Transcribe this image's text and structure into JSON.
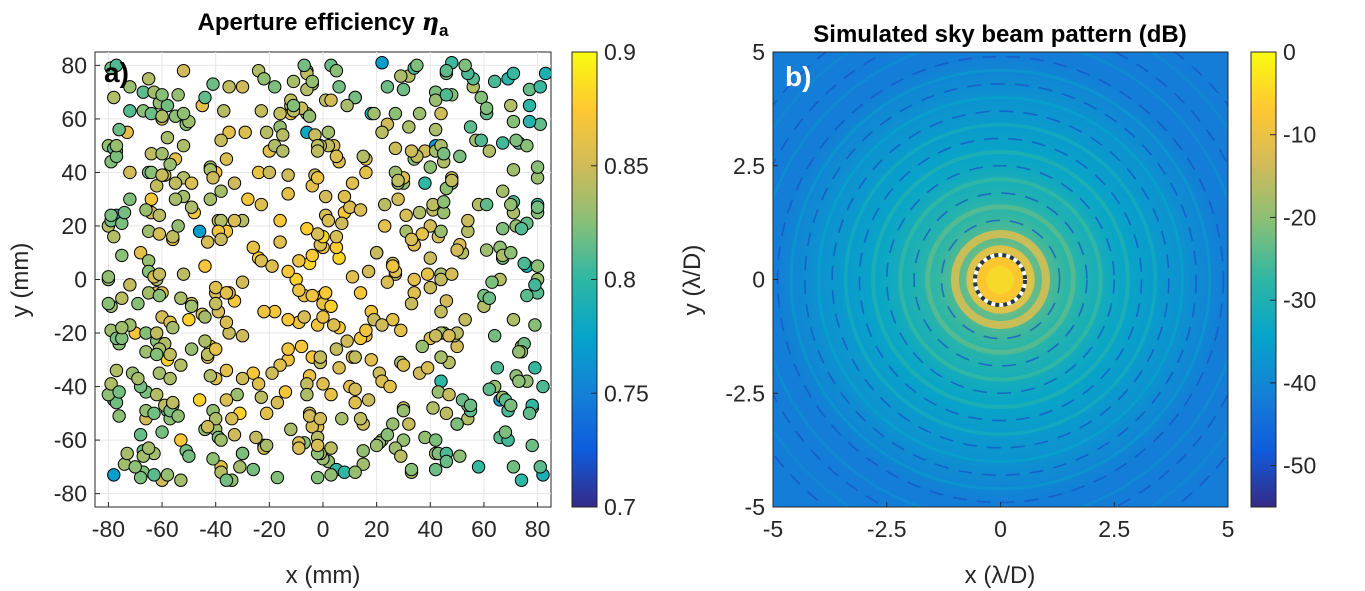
{
  "chart_data": [
    {
      "type": "scatter",
      "panel_label": "a)",
      "title": "Aperture efficiency",
      "title_symbol": "η",
      "title_subscript": "a",
      "xlabel": "x (mm)",
      "ylabel": "y (mm)",
      "xlim": [
        -85,
        85
      ],
      "ylim": [
        -85,
        85
      ],
      "xticks": [
        -80,
        -60,
        -40,
        -20,
        0,
        20,
        40,
        60,
        80
      ],
      "yticks": [
        -80,
        -60,
        -40,
        -20,
        0,
        20,
        40,
        60,
        80
      ],
      "grid": true,
      "colorbar": {
        "min": 0.7,
        "max": 0.9,
        "ticks": [
          0.7,
          0.75,
          0.8,
          0.85,
          0.9
        ],
        "tick_labels": [
          "0.7",
          "0.75",
          "0.8",
          "0.85",
          "0.9"
        ],
        "colormap": "parula"
      },
      "points": {
        "description_note": "",
        "marker_edge_color": "#000000",
        "data": [
          [
            -80,
            50,
            0.83
          ],
          [
            -78,
            68,
            0.84
          ],
          [
            -77,
            24,
            0.78
          ],
          [
            -78,
            -73,
            0.77
          ],
          [
            -78,
            -45,
            0.8
          ],
          [
            -80,
            0,
            0.83
          ],
          [
            -80,
            20,
            0.84
          ],
          [
            -73,
            55,
            0.86
          ],
          [
            -72,
            40,
            0.85
          ],
          [
            -70,
            -20,
            0.87
          ],
          [
            -68,
            10,
            0.86
          ],
          [
            -66,
            -52,
            0.85
          ],
          [
            -65,
            75,
            0.84
          ],
          [
            -64,
            30,
            0.87
          ],
          [
            -62,
            -5,
            0.86
          ],
          [
            -60,
            60,
            0.85
          ],
          [
            -58,
            -30,
            0.88
          ],
          [
            -56,
            15,
            0.87
          ],
          [
            -55,
            45,
            0.86
          ],
          [
            -53,
            -60,
            0.87
          ],
          [
            -52,
            78,
            0.85
          ],
          [
            -50,
            -15,
            0.88
          ],
          [
            -48,
            25,
            0.87
          ],
          [
            -46,
            -45,
            0.88
          ],
          [
            -45,
            65,
            0.86
          ],
          [
            -44,
            5,
            0.87
          ],
          [
            -42,
            -25,
            0.88
          ],
          [
            -40,
            40,
            0.87
          ],
          [
            -38,
            -70,
            0.86
          ],
          [
            -36,
            18,
            0.87
          ],
          [
            -35,
            55,
            0.86
          ],
          [
            -33,
            -8,
            0.87
          ],
          [
            -31,
            -50,
            0.88
          ],
          [
            -30,
            72,
            0.85
          ],
          [
            -28,
            30,
            0.87
          ],
          [
            -26,
            -35,
            0.87
          ],
          [
            -24,
            8,
            0.88
          ],
          [
            -22,
            -62,
            0.85
          ],
          [
            -20,
            48,
            0.86
          ],
          [
            -18,
            -12,
            0.87
          ],
          [
            -16,
            22,
            0.87
          ],
          [
            -14,
            -42,
            0.87
          ],
          [
            -12,
            62,
            0.86
          ],
          [
            -10,
            0,
            0.88
          ],
          [
            -8,
            -25,
            0.87
          ],
          [
            -6,
            78,
            0.84
          ],
          [
            -4,
            35,
            0.86
          ],
          [
            -2,
            -55,
            0.86
          ],
          [
            0,
            12,
            0.87
          ],
          [
            2,
            -68,
            0.83
          ],
          [
            4,
            50,
            0.85
          ],
          [
            6,
            -18,
            0.87
          ],
          [
            8,
            25,
            0.87
          ],
          [
            10,
            -40,
            0.86
          ],
          [
            12,
            68,
            0.85
          ],
          [
            14,
            -5,
            0.87
          ],
          [
            16,
            40,
            0.86
          ],
          [
            18,
            -30,
            0.86
          ],
          [
            20,
            10,
            0.86
          ],
          [
            22,
            -60,
            0.84
          ],
          [
            24,
            58,
            0.85
          ],
          [
            26,
            -15,
            0.86
          ],
          [
            28,
            30,
            0.85
          ],
          [
            30,
            -48,
            0.85
          ],
          [
            32,
            76,
            0.84
          ],
          [
            34,
            0,
            0.86
          ],
          [
            36,
            -35,
            0.85
          ],
          [
            38,
            48,
            0.85
          ],
          [
            40,
            20,
            0.85
          ],
          [
            42,
            -65,
            0.84
          ],
          [
            44,
            62,
            0.85
          ],
          [
            46,
            -8,
            0.85
          ],
          [
            48,
            38,
            0.85
          ],
          [
            50,
            -25,
            0.85
          ],
          [
            52,
            10,
            0.84
          ],
          [
            54,
            -52,
            0.84
          ],
          [
            56,
            72,
            0.84
          ],
          [
            58,
            28,
            0.84
          ],
          [
            60,
            -10,
            0.84
          ],
          [
            62,
            48,
            0.84
          ],
          [
            64,
            -40,
            0.83
          ],
          [
            66,
            0,
            0.84
          ],
          [
            68,
            -58,
            0.84
          ],
          [
            70,
            65,
            0.84
          ],
          [
            72,
            20,
            0.83
          ],
          [
            74,
            -25,
            0.84
          ],
          [
            76,
            5,
            0.79
          ],
          [
            78,
            -48,
            0.83
          ],
          [
            80,
            38,
            0.83
          ],
          [
            83,
            77,
            0.79
          ],
          [
            -6,
            55,
            0.78
          ],
          [
            5,
            -71,
            0.8
          ],
          [
            22,
            81,
            0.77
          ],
          [
            38,
            36,
            0.8
          ],
          [
            42,
            50,
            0.77
          ],
          [
            -46,
            18,
            0.77
          ],
          [
            66,
            -45,
            0.77
          ],
          [
            18,
            62,
            0.78
          ],
          [
            -30,
            -65,
            0.82
          ],
          [
            -60,
            -75,
            0.85
          ],
          [
            8,
            -72,
            0.8
          ],
          [
            44,
            -38,
            0.8
          ],
          [
            -52,
            38,
            0.84
          ],
          [
            30,
            -60,
            0.83
          ]
        ]
      }
    },
    {
      "type": "heatmap",
      "panel_label": "b)",
      "title": "Simulated sky beam pattern (dB)",
      "xlabel": "x (λ/D)",
      "ylabel": "y (λ/D)",
      "xlim": [
        -5,
        5
      ],
      "ylim": [
        -5,
        5
      ],
      "xticks": [
        -5,
        -2.5,
        0,
        2.5,
        5
      ],
      "xtick_labels": [
        "-5",
        "-2.5",
        "0",
        "2.5",
        "5"
      ],
      "yticks": [
        -5,
        -2.5,
        0,
        2.5,
        5
      ],
      "ytick_labels": [
        "-5",
        "-2.5",
        "0",
        "2.5",
        "5"
      ],
      "colorbar": {
        "min": -55,
        "max": 0,
        "ticks": [
          0,
          -10,
          -20,
          -30,
          -40,
          -50
        ],
        "tick_labels": [
          "0",
          "-10",
          "-20",
          "-30",
          "-40",
          "-50"
        ],
        "colormap": "parula"
      },
      "annotation": {
        "type": "dashed circle",
        "center": [
          0,
          0
        ],
        "radius": 0.55,
        "colors": [
          "#ffffff",
          "#1f3c46"
        ]
      },
      "pattern": "Airy-like beam: main lobe 0 dB at center, concentric sidelobe rings fading to about -50 dB at edges"
    }
  ],
  "colors": {
    "parula_stops": [
      "#352a87",
      "#0f5cdd",
      "#1481d6",
      "#06a4ca",
      "#2eb7a4",
      "#87bf77",
      "#d1bb59",
      "#fec832",
      "#f9fb0e"
    ],
    "grid": "#e6e6e6",
    "axis": "#262626"
  }
}
